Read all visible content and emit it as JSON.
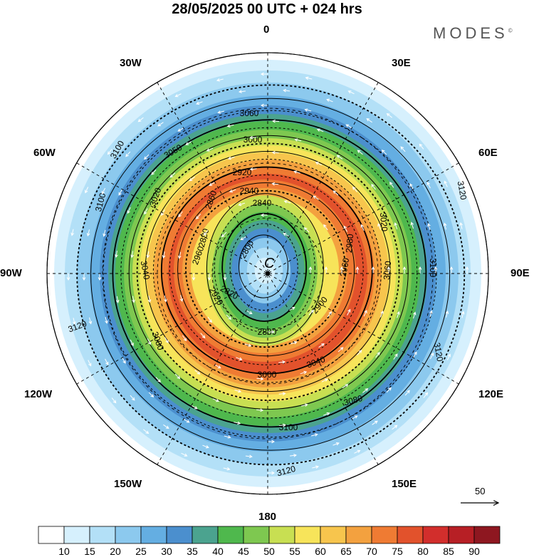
{
  "header": {
    "title": "28/05/2025  00 UTC  + 024 hrs",
    "brand": "MODES",
    "brand_mark": "©"
  },
  "longitudes": {
    "top": "0",
    "bottom": "180",
    "left": "90W",
    "right": "90E",
    "w30": "30W",
    "e30": "30E",
    "w60": "60W",
    "e60": "60E",
    "w120": "120W",
    "e120": "120E",
    "w150": "150W",
    "e150": "150E"
  },
  "center_mark": "C",
  "contours": {
    "labels": [
      "2800",
      "2820",
      "2840",
      "2860",
      "2880",
      "2880",
      "2900",
      "2920",
      "2920",
      "2940",
      "2960",
      "2960",
      "2980",
      "3000",
      "3000",
      "3020",
      "3020",
      "3040",
      "3040",
      "3050",
      "3060",
      "3060",
      "3080",
      "3080",
      "3100",
      "3100",
      "3100",
      "3100",
      "3120",
      "3120",
      "3120",
      "3120"
    ]
  },
  "vector_reference": {
    "value": "50"
  },
  "colorbar": {
    "ticks": [
      "10",
      "15",
      "20",
      "25",
      "30",
      "35",
      "40",
      "45",
      "50",
      "55",
      "60",
      "65",
      "70",
      "75",
      "80",
      "85",
      "90"
    ],
    "colors": [
      "#ffffff",
      "#d6f0fd",
      "#b3e0f7",
      "#8cc9ee",
      "#64aee2",
      "#4b8fce",
      "#4ba38f",
      "#4fb84d",
      "#7ec850",
      "#c8df52",
      "#f7e45a",
      "#f7c54d",
      "#f3a13f",
      "#ef7b33",
      "#e2522c",
      "#d22e2c",
      "#b71f25",
      "#8e1720"
    ]
  },
  "colors": {
    "background": "#ffffff",
    "land_fill": "#e6e6e6",
    "contour": "#000000",
    "wind_vector": "#ffffff"
  }
}
